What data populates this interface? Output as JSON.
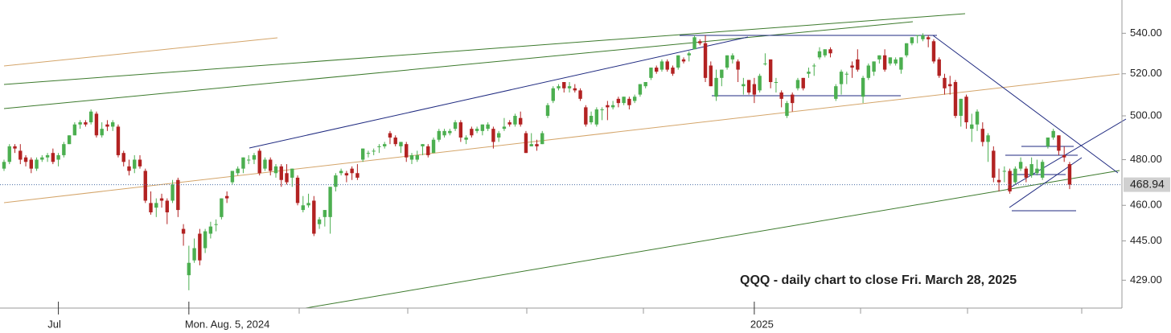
{
  "chart_data": {
    "type": "candlestick",
    "annotation": "QQQ - daily chart to close Fri. March 28, 2025",
    "up_color": "#4caf50",
    "down_color": "#b22222",
    "log_scale": true,
    "ylim": [
      418,
      557
    ],
    "yticks": [
      {
        "value": 540,
        "label": "540.00"
      },
      {
        "value": 520,
        "label": "520.00"
      },
      {
        "value": 500,
        "label": "500.00"
      },
      {
        "value": 480,
        "label": "480.00"
      },
      {
        "value": 460,
        "label": "460.00"
      },
      {
        "value": 445,
        "label": "445.00"
      },
      {
        "value": 429,
        "label": "429.00"
      }
    ],
    "last_price": {
      "value": 468.94,
      "label": "468.94"
    },
    "categories": [
      null,
      null,
      null,
      null,
      null,
      null,
      null,
      null,
      null,
      null,
      "Jul",
      null,
      null,
      null,
      null,
      null,
      null,
      null,
      null,
      null,
      null,
      null,
      null,
      null,
      null,
      null,
      null,
      null,
      null,
      null,
      null,
      null,
      null,
      null,
      "Mon. Aug. 5, 2024",
      null,
      null,
      null,
      null,
      null,
      null,
      null,
      null,
      null,
      null,
      null,
      null,
      null,
      null,
      null,
      null,
      null,
      null,
      null,
      null,
      null,
      null,
      null,
      null,
      null,
      null,
      null,
      null,
      null,
      null,
      null,
      null,
      null,
      null,
      null,
      null,
      null,
      null,
      null,
      null,
      null,
      null,
      null,
      null,
      null,
      null,
      null,
      null,
      null,
      null,
      null,
      null,
      null,
      null,
      null,
      null,
      null,
      null,
      null,
      null,
      null,
      null,
      null,
      null,
      null,
      null,
      null,
      null,
      null,
      null,
      null,
      null,
      null,
      null,
      null,
      null,
      null,
      null,
      null,
      null,
      null,
      null,
      null,
      null,
      null,
      null,
      null,
      null,
      null,
      null,
      null,
      null,
      null,
      null,
      null,
      null,
      null,
      null,
      null,
      null,
      null,
      null,
      null,
      "2025",
      null,
      null,
      null,
      null,
      null,
      null,
      null,
      null,
      null,
      null,
      null,
      null,
      null,
      null,
      null,
      null,
      null,
      null,
      null,
      null,
      null,
      null,
      null,
      null,
      null,
      null,
      null,
      null,
      null,
      null,
      null,
      null,
      null,
      null,
      null,
      null,
      null,
      null,
      null,
      null,
      null,
      null,
      null,
      null,
      null,
      null,
      null,
      null,
      null,
      null,
      null,
      null,
      null,
      null,
      null,
      null,
      null,
      null
    ],
    "values": [
      [
        476,
        480,
        475,
        479
      ],
      [
        479,
        487,
        478,
        486
      ],
      [
        486,
        487,
        483,
        485
      ],
      [
        484,
        487,
        478,
        480
      ],
      [
        481,
        482,
        477,
        479
      ],
      [
        480,
        481,
        474,
        476
      ],
      [
        476,
        481,
        475,
        480
      ],
      [
        480,
        482,
        479,
        481
      ],
      [
        481,
        483,
        479,
        482
      ],
      [
        483,
        485,
        478,
        479
      ],
      [
        480,
        483,
        477,
        482
      ],
      [
        482,
        488,
        481,
        487
      ],
      [
        487,
        491,
        487,
        491
      ],
      [
        491,
        497,
        491,
        496
      ],
      [
        496,
        498,
        494,
        497
      ],
      [
        497,
        498,
        495,
        496
      ],
      [
        497,
        503,
        496,
        502
      ],
      [
        501,
        502,
        490,
        491
      ],
      [
        491,
        497,
        490,
        494
      ],
      [
        496,
        498,
        493,
        495
      ],
      [
        495,
        498,
        493,
        497
      ],
      [
        495,
        496,
        481,
        482
      ],
      [
        483,
        484,
        477,
        479
      ],
      [
        477,
        480,
        473,
        475
      ],
      [
        476,
        482,
        474,
        480
      ],
      [
        480,
        482,
        476,
        477
      ],
      [
        475,
        476,
        461,
        462
      ],
      [
        461,
        466,
        456,
        457
      ],
      [
        459,
        463,
        455,
        461
      ],
      [
        463,
        465,
        459,
        462
      ],
      [
        462,
        463,
        452,
        457
      ],
      [
        462,
        471,
        461,
        469
      ],
      [
        471,
        472,
        455,
        458
      ],
      [
        450,
        452,
        443,
        448
      ],
      [
        431,
        443,
        425,
        436
      ],
      [
        437,
        446,
        436,
        442
      ],
      [
        448,
        450,
        435,
        437
      ],
      [
        442,
        450,
        440,
        449
      ],
      [
        448,
        453,
        446,
        451
      ],
      [
        452,
        454,
        449,
        452
      ],
      [
        455,
        463,
        454,
        463
      ],
      [
        464,
        466,
        461,
        463
      ],
      [
        470,
        475,
        469,
        475
      ],
      [
        474,
        477,
        473,
        476
      ],
      [
        476,
        481,
        474,
        481
      ],
      [
        480,
        482,
        478,
        480
      ],
      [
        480,
        483,
        478,
        482
      ],
      [
        484,
        485,
        473,
        474
      ],
      [
        476,
        481,
        475,
        480
      ],
      [
        480,
        481,
        473,
        475
      ],
      [
        474,
        478,
        472,
        477
      ],
      [
        477,
        478,
        468,
        471
      ],
      [
        474,
        478,
        469,
        470
      ],
      [
        472,
        476,
        468,
        476
      ],
      [
        472,
        473,
        460,
        461
      ],
      [
        458,
        464,
        457,
        460
      ],
      [
        460,
        465,
        459,
        461
      ],
      [
        462,
        464,
        447,
        448
      ],
      [
        452,
        455,
        450,
        454
      ],
      [
        455,
        458,
        451,
        458
      ],
      [
        455,
        468,
        448,
        468
      ],
      [
        468,
        474,
        466,
        473
      ],
      [
        474,
        476,
        473,
        475
      ],
      [
        474,
        475,
        470,
        473
      ],
      [
        476,
        477,
        471,
        474
      ],
      [
        474,
        478,
        471,
        472
      ],
      [
        480,
        485,
        479,
        485
      ],
      [
        483,
        484,
        481,
        483
      ],
      [
        484,
        485,
        482,
        484
      ],
      [
        486,
        487,
        483,
        486
      ],
      [
        486,
        488,
        485,
        487
      ],
      [
        492,
        493,
        487,
        490
      ],
      [
        490,
        491,
        486,
        487
      ],
      [
        486,
        488,
        483,
        488
      ],
      [
        487,
        488,
        479,
        481
      ],
      [
        480,
        483,
        478,
        482
      ],
      [
        480,
        484,
        479,
        482
      ],
      [
        486,
        487,
        482,
        487
      ],
      [
        486,
        487,
        481,
        482
      ],
      [
        483,
        490,
        483,
        489
      ],
      [
        489,
        494,
        488,
        493
      ],
      [
        491,
        494,
        490,
        493
      ],
      [
        492,
        494,
        491,
        493
      ],
      [
        494,
        498,
        493,
        497
      ],
      [
        497,
        498,
        488,
        490
      ],
      [
        489,
        491,
        487,
        490
      ],
      [
        494,
        495,
        490,
        491
      ],
      [
        493,
        495,
        492,
        494
      ],
      [
        493,
        496,
        491,
        496
      ],
      [
        494,
        497,
        493,
        496
      ],
      [
        494,
        495,
        485,
        488
      ],
      [
        490,
        493,
        488,
        492
      ],
      [
        494,
        499,
        493,
        495
      ],
      [
        497,
        498,
        495,
        496
      ],
      [
        496,
        501,
        495,
        500
      ],
      [
        499,
        502,
        495,
        496
      ],
      [
        492,
        493,
        483,
        483
      ],
      [
        486,
        492,
        486,
        487
      ],
      [
        487,
        489,
        484,
        486
      ],
      [
        487,
        493,
        487,
        492
      ],
      [
        500,
        506,
        499,
        505
      ],
      [
        507,
        514,
        506,
        513
      ],
      [
        513,
        515,
        512,
        514
      ],
      [
        516,
        516,
        511,
        513
      ],
      [
        513,
        516,
        511,
        514
      ],
      [
        513,
        515,
        511,
        512
      ],
      [
        512,
        513,
        507,
        508
      ],
      [
        504,
        505,
        495,
        496
      ],
      [
        497,
        502,
        496,
        500
      ],
      [
        496,
        504,
        495,
        503
      ],
      [
        503,
        504,
        498,
        503
      ],
      [
        505,
        507,
        498,
        504
      ],
      [
        504,
        507,
        503,
        505
      ],
      [
        508,
        509,
        504,
        506
      ],
      [
        506,
        509,
        505,
        509
      ],
      [
        508,
        509,
        503,
        505
      ],
      [
        507,
        510,
        506,
        509
      ],
      [
        510,
        515,
        509,
        515
      ],
      [
        514,
        516,
        513,
        516
      ],
      [
        518,
        523,
        517,
        523
      ],
      [
        523,
        524,
        520,
        521
      ],
      [
        522,
        527,
        521,
        526
      ],
      [
        526,
        527,
        521,
        522
      ],
      [
        523,
        524,
        519,
        520
      ],
      [
        523,
        529,
        522,
        529
      ],
      [
        527,
        528,
        525,
        526
      ],
      [
        529,
        531,
        526,
        530
      ],
      [
        532,
        539,
        532,
        538
      ],
      [
        536,
        537,
        534,
        535
      ],
      [
        535,
        539,
        516,
        518
      ],
      [
        524,
        526,
        514,
        514
      ],
      [
        509,
        522,
        507,
        518
      ],
      [
        518,
        522,
        514,
        522
      ],
      [
        523,
        529,
        522,
        529
      ],
      [
        527,
        530,
        525,
        529
      ],
      [
        526,
        527,
        516,
        522
      ],
      [
        514,
        518,
        510,
        515
      ],
      [
        517,
        517,
        510,
        511
      ],
      [
        515,
        518,
        506,
        510
      ],
      [
        512,
        520,
        511,
        519
      ],
      [
        525,
        530,
        524,
        525
      ],
      [
        527,
        527,
        513,
        516
      ],
      [
        516,
        518,
        511,
        516
      ],
      [
        511,
        512,
        504,
        508
      ],
      [
        500,
        507,
        499,
        506
      ],
      [
        510,
        511,
        502,
        506
      ],
      [
        513,
        518,
        512,
        517
      ],
      [
        518,
        518,
        512,
        513
      ],
      [
        520,
        523,
        518,
        521
      ],
      [
        524,
        525,
        519,
        524
      ],
      [
        528,
        533,
        527,
        531
      ],
      [
        529,
        532,
        528,
        532
      ],
      [
        532,
        533,
        528,
        530
      ],
      [
        508,
        515,
        507,
        514
      ],
      [
        515,
        522,
        510,
        521
      ],
      [
        520,
        521,
        515,
        520
      ],
      [
        524,
        526,
        518,
        523
      ],
      [
        527,
        532,
        521,
        522
      ],
      [
        509,
        519,
        506,
        518
      ],
      [
        518,
        525,
        517,
        524
      ],
      [
        521,
        526,
        519,
        526
      ],
      [
        527,
        529,
        525,
        529
      ],
      [
        529,
        532,
        521,
        522
      ],
      [
        525,
        528,
        524,
        528
      ],
      [
        525,
        528,
        524,
        527
      ],
      [
        522,
        528,
        520,
        528
      ],
      [
        529,
        535,
        528,
        535
      ],
      [
        535,
        538,
        534,
        538
      ],
      [
        539,
        539,
        535,
        539
      ],
      [
        537,
        540,
        536,
        539
      ],
      [
        538,
        539,
        533,
        537
      ],
      [
        536,
        537,
        525,
        526
      ],
      [
        527,
        528,
        518,
        519
      ],
      [
        518,
        520,
        510,
        513
      ],
      [
        515,
        519,
        510,
        514
      ],
      [
        516,
        517,
        499,
        500
      ],
      [
        500,
        508,
        495,
        508
      ],
      [
        509,
        510,
        494,
        497
      ],
      [
        494,
        501,
        488,
        496
      ],
      [
        496,
        503,
        493,
        502
      ],
      [
        494,
        497,
        486,
        488
      ],
      [
        488,
        492,
        479,
        491
      ],
      [
        484,
        486,
        470,
        472
      ],
      [
        471,
        476,
        466,
        470
      ],
      [
        475,
        477,
        470,
        475
      ],
      [
        475,
        476,
        465,
        466
      ],
      [
        470,
        477,
        469,
        476
      ],
      [
        476,
        481,
        475,
        479
      ],
      [
        476,
        477,
        470,
        472
      ],
      [
        473,
        481,
        472,
        478
      ],
      [
        474,
        480,
        473,
        476
      ],
      [
        472,
        480,
        471,
        479
      ],
      [
        486,
        490,
        485,
        490
      ],
      [
        490,
        494,
        489,
        493
      ],
      [
        491,
        491,
        482,
        484
      ],
      [
        482,
        486,
        479,
        481
      ],
      [
        478,
        479,
        467,
        468.94
      ]
    ]
  }
}
